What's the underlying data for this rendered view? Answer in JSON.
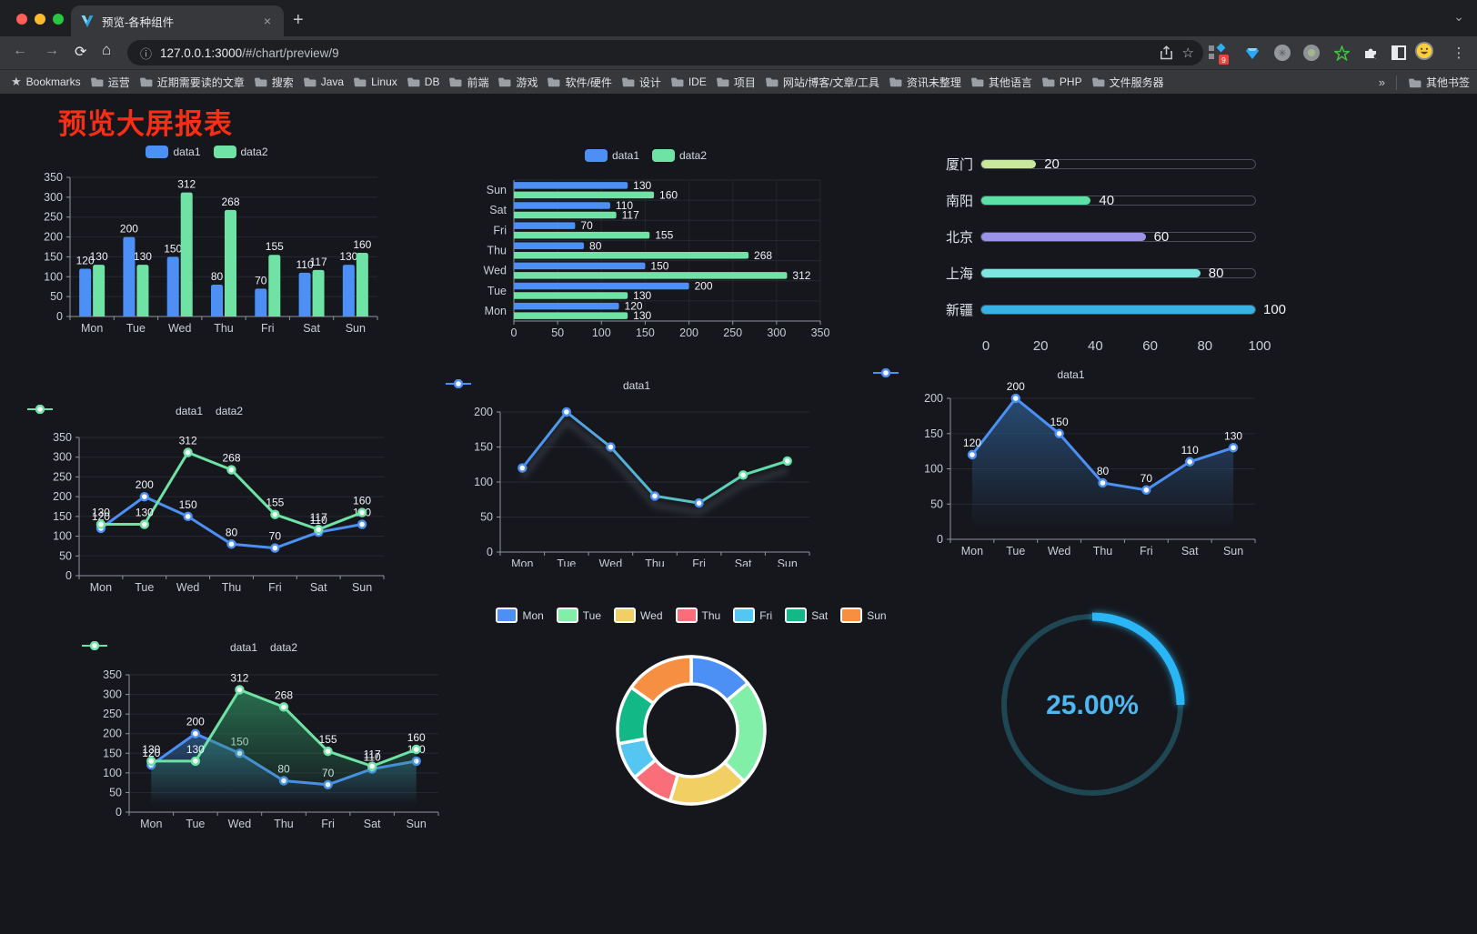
{
  "window": {
    "traffic_lights": [
      "#ff5f57",
      "#febc2e",
      "#28c840"
    ]
  },
  "tab": {
    "title": "预览-各种组件",
    "close_label": "×",
    "new_tab_label": "+"
  },
  "toolbar": {
    "url_host": "127.0.0.1:3000",
    "url_path": "/#/chart/preview/9",
    "extension_badge": "9"
  },
  "bookmarks": {
    "label": "Bookmarks",
    "items": [
      "运营",
      "近期需要读的文章",
      "搜索",
      "Java",
      "Linux",
      "DB",
      "前端",
      "游戏",
      "软件/硬件",
      "设计",
      "IDE",
      "项目",
      "网站/博客/文章/工具",
      "资讯未整理",
      "其他语言",
      "PHP",
      "文件服务器"
    ],
    "overflow": "»",
    "other": "其他书签"
  },
  "page": {
    "title": "预览大屏报表",
    "title_color": "#fb2d15",
    "bg": "#16171d"
  },
  "theme": {
    "text": "#c9cdd6",
    "axis": "#90959e",
    "grid": "#262830",
    "label": "#f0f3f7",
    "series_blue": "#4C90F5",
    "series_green": "#6FE3A5"
  },
  "chart_data": [
    {
      "id": "bar-vertical",
      "type": "bar",
      "orientation": "vertical",
      "categories": [
        "Mon",
        "Tue",
        "Wed",
        "Thu",
        "Fri",
        "Sat",
        "Sun"
      ],
      "series": [
        {
          "name": "data1",
          "color": "#4C90F5",
          "values": [
            120,
            200,
            150,
            80,
            70,
            110,
            130
          ]
        },
        {
          "name": "data2",
          "color": "#6FE3A5",
          "values": [
            130,
            130,
            312,
            268,
            155,
            117,
            160
          ]
        }
      ],
      "ylim": [
        0,
        350
      ],
      "ytick": 50,
      "legend_position": "top",
      "value_labels": true,
      "grid": true
    },
    {
      "id": "bar-horizontal",
      "type": "bar",
      "orientation": "horizontal",
      "categories": [
        "Mon",
        "Tue",
        "Wed",
        "Thu",
        "Fri",
        "Sat",
        "Sun"
      ],
      "category_axis_starts_at_bottom": true,
      "series": [
        {
          "name": "data1",
          "color": "#4C90F5",
          "values": [
            120,
            200,
            150,
            80,
            70,
            110,
            130
          ]
        },
        {
          "name": "data2",
          "color": "#6FE3A5",
          "values": [
            130,
            130,
            312,
            268,
            155,
            117,
            160
          ]
        }
      ],
      "xlim": [
        0,
        350
      ],
      "xtick": 50,
      "legend_position": "top",
      "value_labels": true,
      "grid": true
    },
    {
      "id": "progress-bars",
      "type": "bar",
      "style": "progress",
      "categories": [
        "厦门",
        "南阳",
        "北京",
        "上海",
        "新疆"
      ],
      "values": [
        20,
        40,
        60,
        80,
        100
      ],
      "colors": [
        "#C8E89E",
        "#5CE0A5",
        "#9A93E8",
        "#7EE6E0",
        "#38B2E4"
      ],
      "xlim": [
        0,
        100
      ],
      "xticks": [
        0,
        20,
        40,
        60,
        80,
        100
      ],
      "value_labels": true
    },
    {
      "id": "line-two-series",
      "type": "line",
      "categories": [
        "Mon",
        "Tue",
        "Wed",
        "Thu",
        "Fri",
        "Sat",
        "Sun"
      ],
      "series": [
        {
          "name": "data1",
          "color": "#4C90F5",
          "values": [
            120,
            200,
            150,
            80,
            70,
            110,
            130
          ]
        },
        {
          "name": "data2",
          "color": "#6FE3A5",
          "values": [
            130,
            130,
            312,
            268,
            155,
            117,
            160
          ]
        }
      ],
      "ylim": [
        0,
        350
      ],
      "ytick": 50,
      "markers": "circle",
      "value_labels": true,
      "legend_position": "top"
    },
    {
      "id": "line-gradient",
      "type": "line",
      "categories": [
        "Mon",
        "Tue",
        "Wed",
        "Thu",
        "Fri",
        "Sat",
        "Sun"
      ],
      "series": [
        {
          "name": "data1",
          "color": "#4C90F5",
          "gradient": [
            "#4C90F5",
            "#62E5A5"
          ],
          "values": [
            120,
            200,
            150,
            80,
            70,
            110,
            130
          ]
        }
      ],
      "ylim": [
        0,
        200
      ],
      "ytick": 50,
      "markers": "circle",
      "value_labels": false,
      "shadow": true,
      "legend_position": "top"
    },
    {
      "id": "area-single",
      "type": "area",
      "categories": [
        "Mon",
        "Tue",
        "Wed",
        "Thu",
        "Fri",
        "Sat",
        "Sun"
      ],
      "series": [
        {
          "name": "data1",
          "color": "#4C90F5",
          "area_from": "#2E6096",
          "values": [
            120,
            200,
            150,
            80,
            70,
            110,
            130
          ]
        }
      ],
      "ylim": [
        0,
        200
      ],
      "ytick": 50,
      "markers": "circle",
      "value_labels": true,
      "legend_position": "top"
    },
    {
      "id": "area-two-series",
      "type": "area",
      "categories": [
        "Mon",
        "Tue",
        "Wed",
        "Thu",
        "Fri",
        "Sat",
        "Sun"
      ],
      "series": [
        {
          "name": "data1",
          "color": "#4C90F5",
          "area_from": "#2E6096",
          "values": [
            120,
            200,
            150,
            80,
            70,
            110,
            130
          ]
        },
        {
          "name": "data2",
          "color": "#6FE3A5",
          "area_from": "#2F8F62",
          "values": [
            130,
            130,
            312,
            268,
            155,
            117,
            160
          ]
        }
      ],
      "ylim": [
        0,
        350
      ],
      "ytick": 50,
      "markers": "circle",
      "value_labels": true,
      "legend_position": "top"
    },
    {
      "id": "donut",
      "type": "pie",
      "inner_radius_ratio": 0.63,
      "legend_position": "top",
      "items": [
        {
          "label": "Mon",
          "value": 120,
          "color": "#4C90F5"
        },
        {
          "label": "Tue",
          "value": 200,
          "color": "#82EFA9"
        },
        {
          "label": "Wed",
          "value": 150,
          "color": "#F2CF63"
        },
        {
          "label": "Thu",
          "value": 80,
          "color": "#FA6E79"
        },
        {
          "label": "Fri",
          "value": 70,
          "color": "#55C6F2"
        },
        {
          "label": "Sat",
          "value": 110,
          "color": "#12B886"
        },
        {
          "label": "Sun",
          "value": 130,
          "color": "#F78F42"
        }
      ]
    },
    {
      "id": "gauge",
      "type": "gauge",
      "value": 25,
      "max": 100,
      "label": "25.00%",
      "color": "#29B6F6",
      "track_color": "#1F4653",
      "text_color": "#4DB7F3"
    }
  ]
}
